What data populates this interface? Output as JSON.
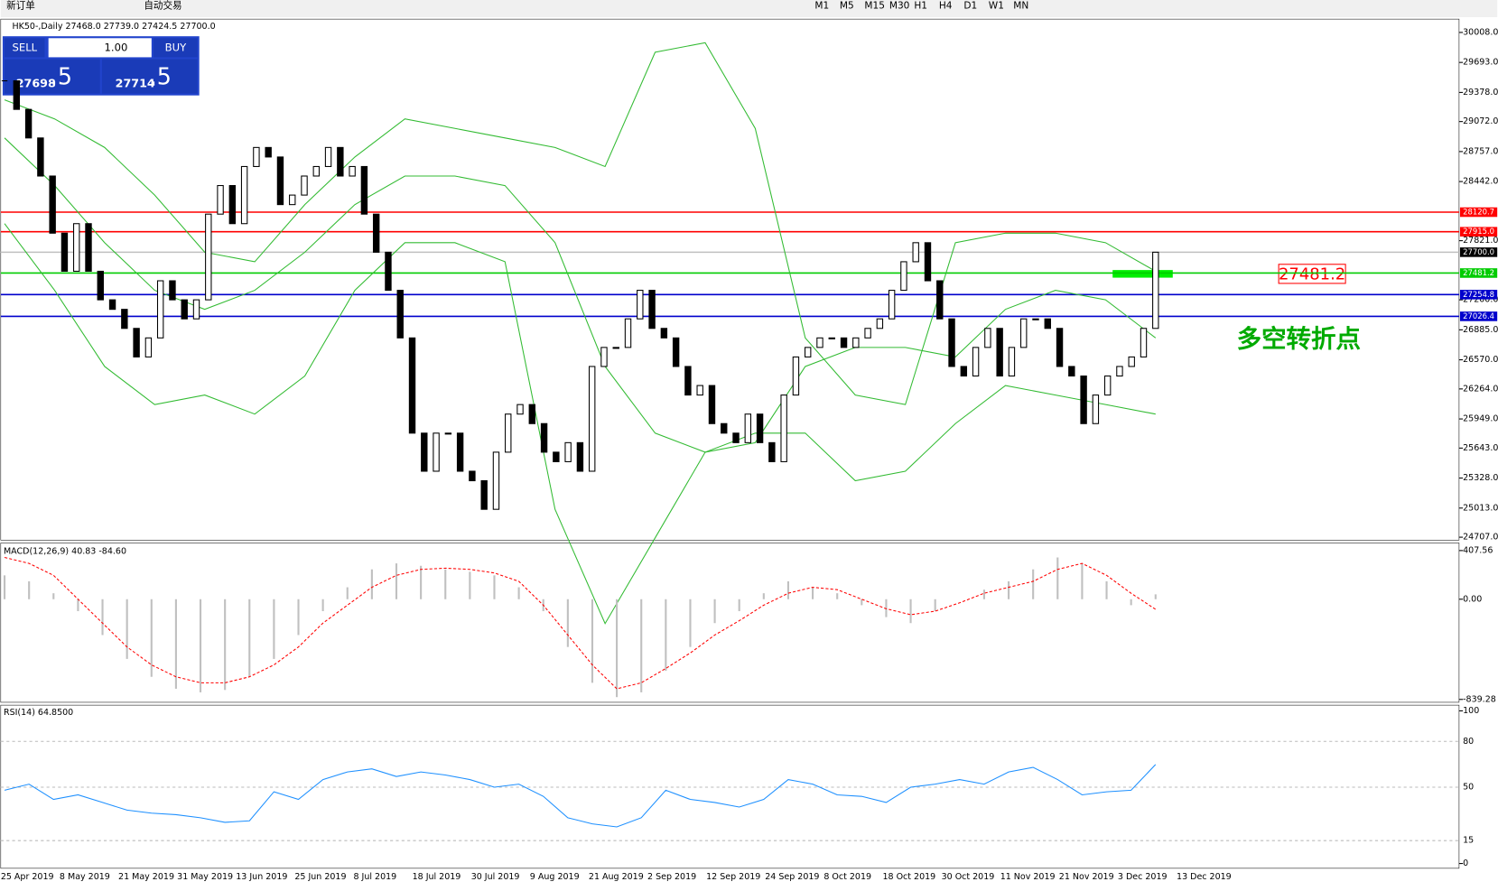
{
  "toolbar": {
    "new_order": "新订单",
    "auto_trade": "自动交易",
    "timeframes": [
      "M1",
      "M5",
      "M15",
      "M30",
      "H1",
      "H4",
      "D1",
      "W1",
      "MN"
    ]
  },
  "trade_panel": {
    "sell": "SELL",
    "buy": "BUY",
    "lots": "1.00",
    "sell_price_big": "27698",
    "sell_price_small": ".5",
    "buy_price_big": "27714",
    "buy_price_small": ".5"
  },
  "chart_data": {
    "type": "candlestick",
    "title": "HK50-,Daily 27468.0 27739.0 27424.5 27700.0",
    "ylim": [
      24707,
      30008
    ],
    "yticks": [
      {
        "value": 30008,
        "label": "30008.0"
      },
      {
        "value": 29693,
        "label": "29693.0"
      },
      {
        "value": 29378,
        "label": "29378.0"
      },
      {
        "value": 29072,
        "label": "29072.0"
      },
      {
        "value": 28757,
        "label": "28757.0"
      },
      {
        "value": 28442,
        "label": "28442.0"
      },
      {
        "value": 27821,
        "label": "27821.0"
      },
      {
        "value": 27200,
        "label": "27200.0"
      },
      {
        "value": 26885,
        "label": "26885.0"
      },
      {
        "value": 26570,
        "label": "26570.0"
      },
      {
        "value": 26264,
        "label": "26264.0"
      },
      {
        "value": 25949,
        "label": "25949.0"
      },
      {
        "value": 25643,
        "label": "25643.0"
      },
      {
        "value": 25328,
        "label": "25328.0"
      },
      {
        "value": 25013,
        "label": "25013.0"
      },
      {
        "value": 24707,
        "label": "24707.0"
      }
    ],
    "levels": [
      {
        "value": 28120.7,
        "label": "28120.7",
        "color": "#ff0000"
      },
      {
        "value": 27915,
        "label": "27915.0",
        "color": "#ff0000"
      },
      {
        "value": 27700,
        "label": "27700.0",
        "color": "#c0c0c0"
      },
      {
        "value": 27481.2,
        "label": "27481.2",
        "color": "#00cc00"
      },
      {
        "value": 27254.8,
        "label": "27254.8",
        "color": "#0000cc"
      },
      {
        "value": 27026.4,
        "label": "27026.4",
        "color": "#0000cc"
      }
    ],
    "annotation_price": "27481.2",
    "annotation_text": "多空转折点",
    "categories": [
      "25 Apr 2019",
      "8 May 2019",
      "21 May 2019",
      "31 May 2019",
      "13 Jun 2019",
      "25 Jun 2019",
      "8 Jul 2019",
      "18 Jul 2019",
      "30 Jul 2019",
      "9 Aug 2019",
      "21 Aug 2019",
      "2 Sep 2019",
      "12 Sep 2019",
      "24 Sep 2019",
      "8 Oct 2019",
      "18 Oct 2019",
      "30 Oct 2019",
      "11 Nov 2019",
      "21 Nov 2019",
      "3 Dec 2019",
      "13 Dec 2019"
    ],
    "close": [
      29500,
      29200,
      28900,
      28500,
      27900,
      27500,
      28000,
      27500,
      27200,
      27100,
      26900,
      26600,
      26800,
      27400,
      27200,
      27000,
      27200,
      28100,
      28400,
      28000,
      28600,
      28800,
      28700,
      28200,
      28300,
      28500,
      28600,
      28800,
      28500,
      28600,
      28100,
      27700,
      27300,
      26800,
      25800,
      25400,
      25800,
      25800,
      25400,
      25300,
      25000,
      25600,
      26000,
      26100,
      25900,
      25600,
      25500,
      25700,
      25400,
      26500,
      26700,
      26700,
      27000,
      27300,
      26900,
      26800,
      26500,
      26200,
      26300,
      25900,
      25800,
      25700,
      26000,
      25700,
      25500,
      26200,
      26600,
      26700,
      26800,
      26800,
      26700,
      26800,
      26900,
      27000,
      27300,
      27600,
      27800,
      27400,
      27000,
      26500,
      26400,
      26700,
      26900,
      26400,
      26700,
      27000,
      27000,
      26900,
      26500,
      26400,
      25900,
      26200,
      26400,
      26500,
      26600,
      26900,
      27700
    ],
    "bands": {
      "color": "#33bb33",
      "upper": [
        29300,
        29100,
        28800,
        28300,
        27700,
        27600,
        28200,
        28700,
        29100,
        29000,
        28900,
        28800,
        28600,
        29800,
        29900,
        29000,
        26800,
        26200,
        26100,
        27800,
        27900,
        27900,
        27800,
        27500
      ],
      "middle": [
        28900,
        28400,
        27800,
        27300,
        27100,
        27300,
        27700,
        28200,
        28500,
        28500,
        28400,
        27800,
        26500,
        25800,
        25600,
        25700,
        26500,
        26700,
        26700,
        26600,
        27100,
        27300,
        27200,
        26800
      ],
      "lower": [
        28000,
        27300,
        26500,
        26100,
        26200,
        26000,
        26400,
        27300,
        27800,
        27800,
        27600,
        25000,
        23800,
        24700,
        25600,
        25800,
        25800,
        25300,
        25400,
        25900,
        26300,
        26200,
        26100,
        26000
      ]
    },
    "macd": {
      "title": "MACD(12,26,9) 40.83 -84.60",
      "ylim": [
        -839.28,
        407.56
      ],
      "yticks": [
        {
          "value": 407.56,
          "label": "407.56"
        },
        {
          "value": 0,
          "label": "0.00"
        },
        {
          "value": -839.28,
          "label": "-839.28"
        }
      ],
      "histogram": [
        200,
        150,
        50,
        -100,
        -300,
        -500,
        -650,
        -750,
        -780,
        -760,
        -650,
        -500,
        -300,
        -100,
        100,
        250,
        300,
        280,
        250,
        230,
        200,
        100,
        -100,
        -400,
        -700,
        -820,
        -780,
        -600,
        -400,
        -200,
        -100,
        50,
        150,
        100,
        50,
        -50,
        -150,
        -200,
        -100,
        0,
        80,
        150,
        250,
        350,
        300,
        150,
        -50,
        40.83
      ],
      "signal": [
        350,
        300,
        200,
        0,
        -200,
        -400,
        -550,
        -650,
        -700,
        -700,
        -650,
        -550,
        -400,
        -200,
        -50,
        100,
        200,
        250,
        260,
        250,
        220,
        150,
        -50,
        -300,
        -550,
        -750,
        -700,
        -580,
        -450,
        -300,
        -180,
        -50,
        50,
        100,
        80,
        0,
        -80,
        -130,
        -100,
        -30,
        50,
        100,
        150,
        250,
        300,
        200,
        50,
        -84.6
      ]
    },
    "rsi": {
      "title": "RSI(14) 64.8500",
      "ylim": [
        0,
        100
      ],
      "yticks": [
        0,
        15,
        50,
        80,
        100
      ],
      "values": [
        48,
        52,
        42,
        45,
        40,
        35,
        33,
        32,
        30,
        27,
        28,
        47,
        42,
        55,
        60,
        62,
        57,
        60,
        58,
        55,
        50,
        52,
        44,
        30,
        26,
        24,
        30,
        48,
        42,
        40,
        37,
        42,
        55,
        52,
        45,
        44,
        40,
        50,
        52,
        55,
        52,
        60,
        63,
        55,
        45,
        47,
        48,
        64.85
      ]
    }
  }
}
